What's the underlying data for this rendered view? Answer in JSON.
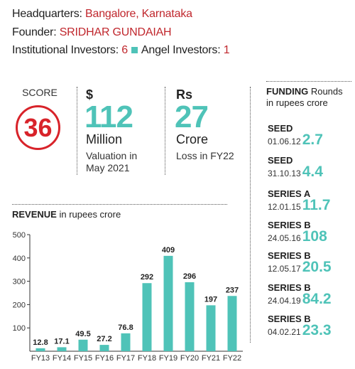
{
  "header": {
    "hq_label": "Headquarters: ",
    "hq_value": "Bangalore, Karnataka",
    "founder_label": "Founder: ",
    "founder_value": "SRIDHAR GUNDAIAH",
    "inst_label": "Institutional Investors: ",
    "inst_value": "6",
    "angel_label": "Angel Investors: ",
    "angel_value": "1"
  },
  "score": {
    "label": "SCORE",
    "value": "36"
  },
  "valuation": {
    "unit": "$",
    "value": "112",
    "scale": "Million",
    "caption_line1": "Valuation in",
    "caption_line2": "May 2021"
  },
  "loss": {
    "unit": "Rs",
    "value": "27",
    "scale": "Crore",
    "caption": "Loss in FY22"
  },
  "funding": {
    "title_bold": "FUNDING",
    "title_rest": " Rounds",
    "subtitle": "in rupees crore",
    "rounds": [
      {
        "name": "SEED",
        "date": "01.06.12",
        "amount": "2.7"
      },
      {
        "name": "SEED",
        "date": "31.10.13",
        "amount": "4.4"
      },
      {
        "name": "SERIES A",
        "date": "12.01.15",
        "amount": "11.7"
      },
      {
        "name": "SERIES B",
        "date": "24.05.16",
        "amount": "108"
      },
      {
        "name": "SERIES B",
        "date": "12.05.17",
        "amount": "20.5"
      },
      {
        "name": "SERIES B",
        "date": "24.04.19",
        "amount": "84.2"
      },
      {
        "name": "SERIES B",
        "date": "04.02.21",
        "amount": "23.3"
      }
    ]
  },
  "revenue": {
    "title_bold": "REVENUE",
    "title_rest": " in rupees crore"
  },
  "colors": {
    "accent": "#4fc3b8",
    "red": "#d8232a"
  },
  "chart_data": {
    "type": "bar",
    "title": "REVENUE in rupees crore",
    "categories": [
      "FY13",
      "FY14",
      "FY15",
      "FY16",
      "FY17",
      "FY18",
      "FY19",
      "FY20",
      "FY21",
      "FY22"
    ],
    "values": [
      12.8,
      17.1,
      49.5,
      27.2,
      76.8,
      292,
      409,
      296,
      197,
      237
    ],
    "value_labels": [
      "12.8",
      "17.1",
      "49.5",
      "27.2",
      "76.8",
      "292",
      "409",
      "296",
      "197",
      "237"
    ],
    "yticks": [
      "100",
      "200",
      "300",
      "400",
      "500"
    ],
    "ylim": [
      0,
      500
    ],
    "grid": false,
    "color": "#4fc3b8"
  }
}
